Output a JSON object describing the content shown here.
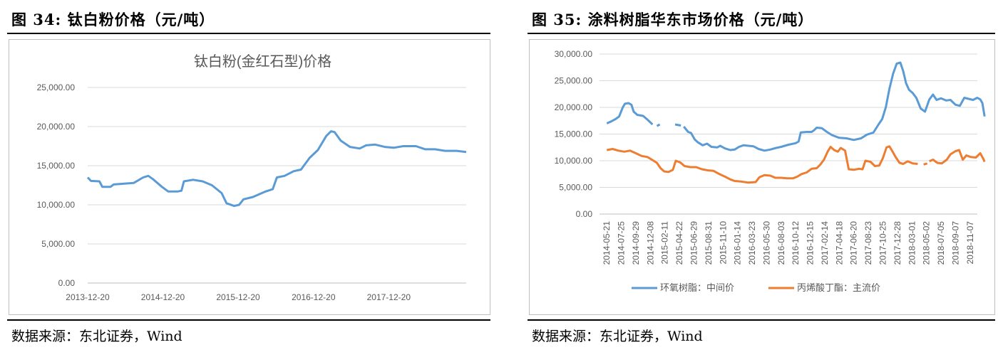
{
  "panels": [
    {
      "figure_title": "图  34:  钛白粉价格（元/吨）",
      "source": "数据来源：东北证券，Wind"
    },
    {
      "figure_title": "图  35:  涂料树脂华东市场价格（元/吨）",
      "source": "数据来源：东北证券，Wind"
    }
  ],
  "colors": {
    "blue": "#5b9bd5",
    "orange": "#ed7d31",
    "grid": "#d9d9d9",
    "axis_text": "#595959"
  },
  "chart_data": [
    {
      "type": "line",
      "title": "钛白粉(金红石型)价格",
      "xlabel": "",
      "ylabel": "",
      "ylim": [
        0,
        25000
      ],
      "y_ticks": [
        "0.00",
        "5,000.00",
        "10,000.00",
        "15,000.00",
        "20,000.00",
        "25,000.00"
      ],
      "x_ticks": [
        "2013-12-20",
        "2014-12-20",
        "2015-12-20",
        "2016-12-20",
        "2017-12-20"
      ],
      "grid": true,
      "legend": "none",
      "series": [
        {
          "color": "#5b9bd5",
          "points": [
            [
              "2013-12-20",
              13500
            ],
            [
              "2014-01-05",
              13050
            ],
            [
              "2014-02-15",
              13000
            ],
            [
              "2014-03-01",
              12300
            ],
            [
              "2014-04-10",
              12300
            ],
            [
              "2014-04-25",
              12600
            ],
            [
              "2014-06-15",
              12700
            ],
            [
              "2014-08-01",
              12800
            ],
            [
              "2014-09-15",
              13500
            ],
            [
              "2014-10-10",
              13700
            ],
            [
              "2014-11-01",
              13300
            ],
            [
              "2014-12-15",
              12300
            ],
            [
              "2015-01-15",
              11700
            ],
            [
              "2015-03-01",
              11700
            ],
            [
              "2015-03-20",
              11800
            ],
            [
              "2015-04-01",
              13000
            ],
            [
              "2015-05-15",
              13200
            ],
            [
              "2015-07-01",
              13000
            ],
            [
              "2015-08-15",
              12500
            ],
            [
              "2015-10-01",
              11500
            ],
            [
              "2015-10-25",
              10200
            ],
            [
              "2015-12-01",
              9850
            ],
            [
              "2015-12-25",
              10000
            ],
            [
              "2016-01-15",
              10700
            ],
            [
              "2016-03-01",
              11000
            ],
            [
              "2016-05-01",
              11700
            ],
            [
              "2016-06-05",
              12000
            ],
            [
              "2016-06-25",
              13500
            ],
            [
              "2016-08-01",
              13700
            ],
            [
              "2016-09-15",
              14300
            ],
            [
              "2016-10-20",
              14500
            ],
            [
              "2016-12-01",
              16000
            ],
            [
              "2017-01-10",
              17000
            ],
            [
              "2017-02-20",
              18800
            ],
            [
              "2017-03-15",
              19400
            ],
            [
              "2017-04-01",
              19300
            ],
            [
              "2017-05-01",
              18200
            ],
            [
              "2017-06-15",
              17400
            ],
            [
              "2017-08-01",
              17200
            ],
            [
              "2017-09-01",
              17600
            ],
            [
              "2017-10-15",
              17700
            ],
            [
              "2017-12-01",
              17400
            ],
            [
              "2018-01-15",
              17300
            ],
            [
              "2018-03-01",
              17500
            ],
            [
              "2018-05-01",
              17500
            ],
            [
              "2018-06-15",
              17100
            ],
            [
              "2018-08-01",
              17100
            ],
            [
              "2018-09-20",
              16900
            ],
            [
              "2018-11-15",
              16900
            ],
            [
              "2018-12-31",
              16750
            ]
          ]
        }
      ]
    },
    {
      "type": "line",
      "title": "",
      "xlabel": "",
      "ylabel": "",
      "ylim": [
        0,
        30000
      ],
      "y_ticks": [
        "0.00",
        "5,000.00",
        "10,000.00",
        "15,000.00",
        "20,000.00",
        "25,000.00",
        "30,000.00"
      ],
      "x_ticks": [
        "2014-05-21",
        "2014-07-25",
        "2014-09-29",
        "2014-12-08",
        "2015-02-11",
        "2015-04-22",
        "2015-06-29",
        "2015-08-31",
        "2015-11-10",
        "2016-01-14",
        "2016-03-23",
        "2016-05-30",
        "2016-08-03",
        "2016-10-12",
        "2016-12-15",
        "2017-02-14",
        "2017-04-18",
        "2017-06-20",
        "2017-08-23",
        "2017-10-25",
        "2017-12-28",
        "2018-03-01",
        "2018-05-02",
        "2018-07-05",
        "2018-09-07",
        "2018-11-07"
      ],
      "grid": true,
      "legend": "bottom",
      "series": [
        {
          "name": "环氧树脂：中间价",
          "color": "#5b9bd5",
          "segments": [
            [
              [
                0,
                17000
              ],
              [
                0.5,
                17300
              ],
              [
                1.2,
                17800
              ],
              [
                1.7,
                18300
              ],
              [
                2.2,
                20000
              ],
              [
                2.5,
                20700
              ],
              [
                3.0,
                20800
              ],
              [
                3.4,
                20500
              ],
              [
                3.7,
                19200
              ],
              [
                4.2,
                18600
              ],
              [
                5.0,
                18400
              ],
              [
                5.6,
                17700
              ],
              [
                6.3,
                16800
              ]
            ],
            [
              [
                6.9,
                16500
              ],
              [
                7.3,
                16800
              ]
            ],
            [
              [
                9.4,
                16800
              ],
              [
                10.2,
                16600
              ]
            ],
            [
              [
                10.6,
                16400
              ],
              [
                11.2,
                15400
              ],
              [
                11.6,
                15200
              ],
              [
                12.1,
                14000
              ],
              [
                12.5,
                13500
              ],
              [
                13.2,
                12900
              ],
              [
                13.8,
                13200
              ],
              [
                14.4,
                12600
              ],
              [
                15.2,
                12500
              ],
              [
                15.6,
                12800
              ],
              [
                16.3,
                12300
              ],
              [
                17.0,
                12000
              ],
              [
                17.6,
                12100
              ],
              [
                18.2,
                12600
              ],
              [
                18.8,
                12900
              ],
              [
                19.5,
                12800
              ],
              [
                20.2,
                12700
              ],
              [
                20.9,
                12200
              ],
              [
                21.7,
                11900
              ],
              [
                22.5,
                12100
              ],
              [
                23.3,
                12400
              ],
              [
                24.0,
                12600
              ],
              [
                25.0,
                13000
              ],
              [
                26.0,
                13300
              ],
              [
                26.4,
                13600
              ],
              [
                26.7,
                15300
              ],
              [
                27.5,
                15400
              ],
              [
                28.2,
                15400
              ],
              [
                28.5,
                15700
              ],
              [
                28.9,
                16200
              ],
              [
                29.6,
                16100
              ],
              [
                30.3,
                15400
              ],
              [
                31.0,
                14800
              ],
              [
                32.0,
                14300
              ],
              [
                33.0,
                14200
              ],
              [
                34.0,
                13900
              ],
              [
                35.0,
                14200
              ],
              [
                35.8,
                14900
              ],
              [
                36.7,
                15300
              ],
              [
                37.4,
                16800
              ],
              [
                37.9,
                17800
              ],
              [
                38.4,
                20000
              ],
              [
                38.9,
                23500
              ],
              [
                39.4,
                26300
              ],
              [
                39.9,
                28200
              ],
              [
                40.4,
                28400
              ],
              [
                40.8,
                26800
              ],
              [
                41.2,
                24500
              ],
              [
                41.6,
                23300
              ],
              [
                42.1,
                22700
              ],
              [
                42.6,
                21800
              ],
              [
                43.2,
                19800
              ],
              [
                43.8,
                19200
              ],
              [
                44.4,
                21500
              ],
              [
                44.9,
                22400
              ],
              [
                45.4,
                21400
              ],
              [
                46.0,
                21700
              ],
              [
                46.7,
                21300
              ],
              [
                47.3,
                21400
              ],
              [
                48.0,
                20500
              ],
              [
                48.6,
                20300
              ],
              [
                49.2,
                21800
              ],
              [
                49.8,
                21600
              ],
              [
                50.4,
                21400
              ],
              [
                51.0,
                21800
              ],
              [
                51.4,
                21500
              ],
              [
                51.7,
                20800
              ],
              [
                52.0,
                18300
              ]
            ]
          ]
        },
        {
          "name": "丙烯酸丁酯：主流价",
          "color": "#ed7d31",
          "segments": [
            [
              [
                0,
                12000
              ],
              [
                0.8,
                12200
              ],
              [
                1.6,
                11900
              ],
              [
                2.4,
                11700
              ],
              [
                3.2,
                11900
              ],
              [
                4.0,
                11400
              ],
              [
                4.8,
                10900
              ],
              [
                5.6,
                10700
              ],
              [
                6.2,
                10200
              ],
              [
                6.9,
                9600
              ],
              [
                7.4,
                8600
              ],
              [
                7.9,
                8000
              ],
              [
                8.5,
                7900
              ],
              [
                9.1,
                8300
              ],
              [
                9.5,
                10000
              ],
              [
                10.1,
                9700
              ],
              [
                10.7,
                9000
              ],
              [
                11.5,
                8800
              ],
              [
                12.3,
                8800
              ],
              [
                13.1,
                8400
              ],
              [
                13.9,
                8200
              ],
              [
                14.7,
                8100
              ],
              [
                15.5,
                7500
              ],
              [
                16.3,
                7000
              ],
              [
                17.0,
                6500
              ],
              [
                17.6,
                6200
              ],
              [
                18.5,
                6100
              ],
              [
                19.5,
                5900
              ],
              [
                20.5,
                6000
              ],
              [
                21.0,
                6900
              ],
              [
                21.7,
                7300
              ],
              [
                22.5,
                7200
              ],
              [
                23.2,
                6800
              ],
              [
                24.0,
                6800
              ],
              [
                24.8,
                6700
              ],
              [
                25.6,
                6700
              ],
              [
                26.2,
                7000
              ],
              [
                26.8,
                7500
              ],
              [
                27.5,
                7800
              ],
              [
                28.2,
                8500
              ],
              [
                28.9,
                8600
              ],
              [
                29.4,
                9300
              ],
              [
                29.9,
                10200
              ],
              [
                30.4,
                11700
              ],
              [
                30.8,
                12600
              ],
              [
                31.3,
                12000
              ],
              [
                31.8,
                11700
              ],
              [
                32.2,
                12400
              ],
              [
                32.8,
                11900
              ],
              [
                33.3,
                8400
              ],
              [
                34.0,
                8300
              ],
              [
                34.7,
                8500
              ],
              [
                35.2,
                8400
              ],
              [
                35.6,
                10000
              ],
              [
                36.3,
                9800
              ],
              [
                36.9,
                9000
              ],
              [
                37.5,
                9100
              ],
              [
                38.0,
                10500
              ],
              [
                38.5,
                12500
              ],
              [
                38.9,
                12700
              ],
              [
                39.3,
                11800
              ],
              [
                39.8,
                10600
              ],
              [
                40.3,
                9600
              ],
              [
                40.8,
                9400
              ],
              [
                41.4,
                9900
              ],
              [
                42.1,
                9500
              ],
              [
                42.8,
                9400
              ]
            ],
            [
              [
                43.6,
                9300
              ],
              [
                44.1,
                9500
              ]
            ],
            [
              [
                44.4,
                9900
              ],
              [
                44.9,
                10200
              ],
              [
                45.5,
                9600
              ],
              [
                46.1,
                9500
              ],
              [
                46.8,
                10200
              ],
              [
                47.3,
                11200
              ],
              [
                48.0,
                11800
              ],
              [
                48.5,
                12000
              ],
              [
                49.0,
                10200
              ],
              [
                49.5,
                11000
              ],
              [
                50.1,
                10700
              ],
              [
                50.8,
                10600
              ],
              [
                51.4,
                11400
              ],
              [
                51.8,
                10400
              ],
              [
                52.0,
                9800
              ]
            ]
          ]
        }
      ]
    }
  ]
}
